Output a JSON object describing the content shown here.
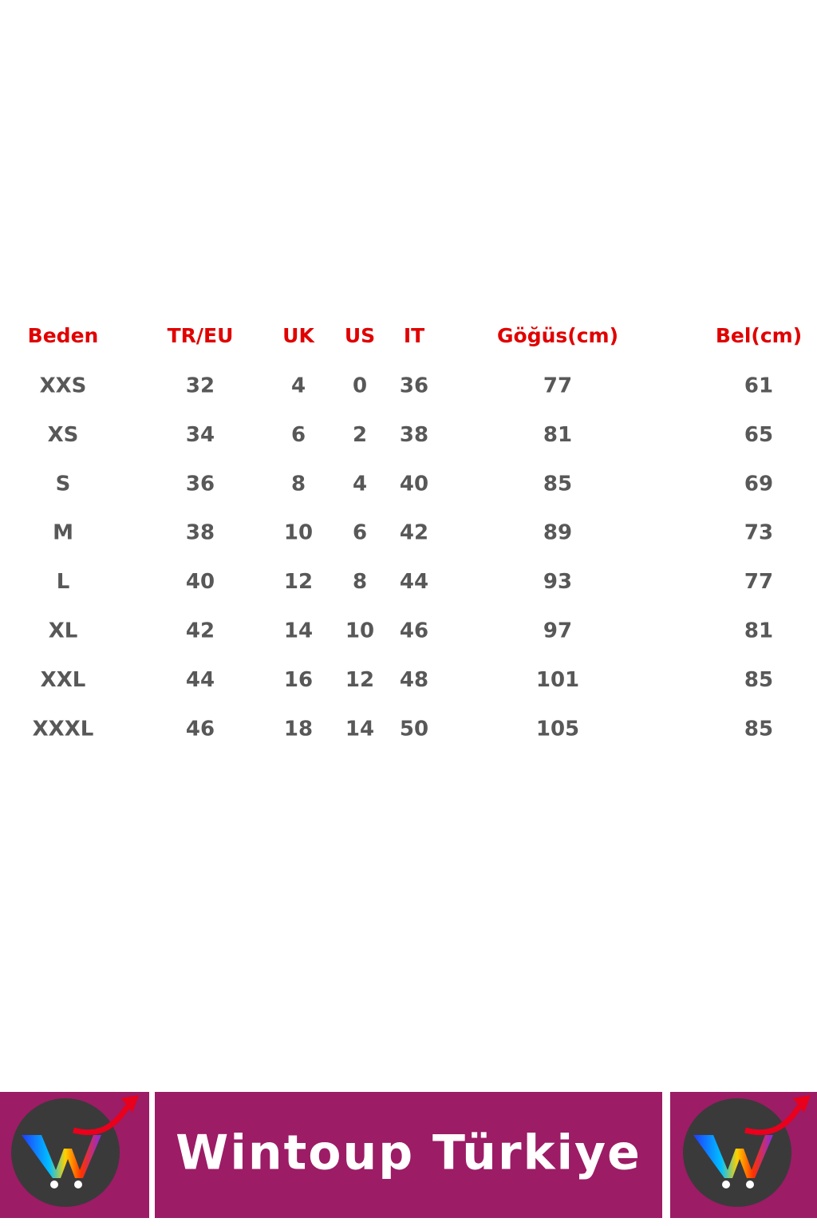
{
  "table": {
    "header": [
      "Beden",
      "TR/EU",
      "UK",
      "US",
      "IT",
      "Göğüs(cm)",
      "Bel(cm)"
    ],
    "rows": [
      [
        "XXS",
        32,
        4,
        0,
        36,
        77,
        61
      ],
      [
        "XS",
        34,
        6,
        2,
        38,
        81,
        65
      ],
      [
        "S",
        36,
        8,
        4,
        40,
        85,
        69
      ],
      [
        "M",
        38,
        10,
        6,
        42,
        89,
        73
      ],
      [
        "L",
        40,
        12,
        8,
        44,
        93,
        77
      ],
      [
        "XL",
        42,
        14,
        10,
        46,
        97,
        81
      ],
      [
        "XXL",
        44,
        16,
        12,
        48,
        101,
        85
      ],
      [
        "XXXL",
        46,
        18,
        14,
        50,
        105,
        85
      ]
    ]
  },
  "banner": {
    "title": "Wintoup Türkiye"
  }
}
